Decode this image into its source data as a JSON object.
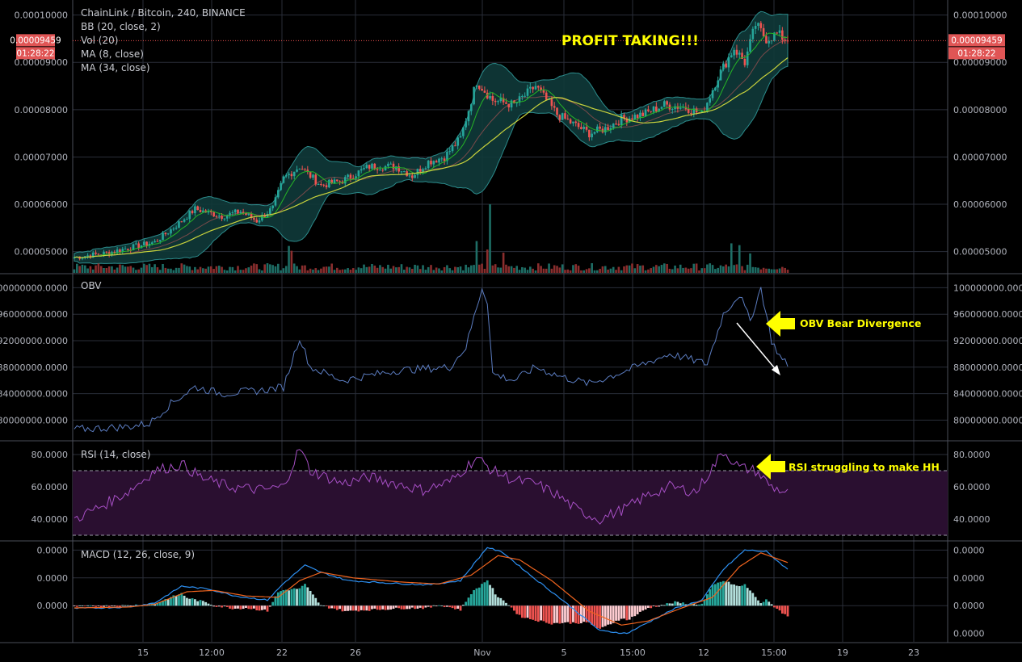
{
  "header": {
    "symbol": "ChainLink / Bitcoin, 240, BINANCE",
    "indicators": [
      "BB (20, close, 2)",
      "Vol (20)",
      "MA (8, close)",
      "MA (34, close)"
    ]
  },
  "price_tag": {
    "value": "0.00009459",
    "countdown": "01:28:22",
    "color": "#e05555"
  },
  "annotations": {
    "profit": "PROFIT TAKING!!!",
    "obv": "OBV Bear Divergence",
    "rsi": "RSI struggling to make HH"
  },
  "panes": {
    "obv": {
      "label": "OBV"
    },
    "rsi": {
      "label": "RSI (14, close)"
    },
    "macd": {
      "label": "MACD (12, 26, close, 9)"
    }
  },
  "colors": {
    "up": "#26a69a",
    "down": "#ef5350",
    "bb_fill": "#0f3a3a",
    "ma8": "#26b526",
    "ma34": "#c8d23c",
    "obv": "#5b7cc0",
    "rsi": "#a64fc4",
    "rsi_band": "#2a0f30",
    "macd": "#2d8ff0",
    "signal": "#f0641e",
    "annot": "#ffff00",
    "grid": "#2a2e39"
  },
  "chart_data": [
    {
      "type": "candlestick",
      "name": "price",
      "y_ticks": [
        "0.00010000",
        "0.00009000",
        "0.00008000",
        "0.00007000",
        "0.00006000",
        "0.00005000"
      ],
      "ylim": [
        4.55e-05,
        0.0001025
      ],
      "x_ticks": [
        "15",
        "12:00",
        "22",
        "26",
        "Nov",
        "5",
        "15:00",
        "12",
        "15:00",
        "19",
        "23"
      ],
      "close_keypoints": [
        [
          0,
          4.88e-05
        ],
        [
          12,
          4.97e-05
        ],
        [
          22,
          5.1e-05
        ],
        [
          30,
          5.2e-05
        ],
        [
          38,
          5.55e-05
        ],
        [
          45,
          5.9e-05
        ],
        [
          55,
          5.75e-05
        ],
        [
          62,
          5.85e-05
        ],
        [
          68,
          5.65e-05
        ],
        [
          74,
          5.92e-05
        ],
        [
          78,
          6.55e-05
        ],
        [
          84,
          6.8e-05
        ],
        [
          92,
          6.4e-05
        ],
        [
          100,
          6.5e-05
        ],
        [
          110,
          6.8e-05
        ],
        [
          120,
          6.8e-05
        ],
        [
          126,
          6.6e-05
        ],
        [
          132,
          6.9e-05
        ],
        [
          138,
          7e-05
        ],
        [
          144,
          7.4e-05
        ],
        [
          150,
          8.6e-05
        ],
        [
          156,
          8.2e-05
        ],
        [
          164,
          8.1e-05
        ],
        [
          172,
          8.5e-05
        ],
        [
          180,
          7.9e-05
        ],
        [
          186,
          7.7e-05
        ],
        [
          192,
          7.5e-05
        ],
        [
          198,
          7.6e-05
        ],
        [
          204,
          7.8e-05
        ],
        [
          212,
          7.9e-05
        ],
        [
          220,
          8.1e-05
        ],
        [
          228,
          8.05e-05
        ],
        [
          234,
          7.9e-05
        ],
        [
          240,
          8.7e-05
        ],
        [
          246,
          9.3e-05
        ],
        [
          250,
          9e-05
        ],
        [
          254,
          9.8e-05
        ],
        [
          258,
          9.5e-05
        ],
        [
          262,
          9.6e-05
        ],
        [
          266,
          9.46e-05
        ]
      ],
      "last": 9.459e-05
    },
    {
      "type": "line",
      "name": "OBV",
      "y_ticks": [
        "100000000.0000",
        "96000000.0000",
        "92000000.0000",
        "88000000.0000",
        "84000000.0000",
        "80000000.0000"
      ],
      "ylim": [
        77000000,
        102000000
      ],
      "keypoints": [
        [
          0,
          78600000
        ],
        [
          20,
          79000000
        ],
        [
          28,
          79500000
        ],
        [
          36,
          82500000
        ],
        [
          45,
          85000000
        ],
        [
          55,
          84000000
        ],
        [
          70,
          84500000
        ],
        [
          78,
          85000000
        ],
        [
          84,
          92500000
        ],
        [
          88,
          88000000
        ],
        [
          100,
          86000000
        ],
        [
          120,
          87500000
        ],
        [
          140,
          88000000
        ],
        [
          146,
          91000000
        ],
        [
          152,
          100000000
        ],
        [
          154,
          98000000
        ],
        [
          156,
          87000000
        ],
        [
          164,
          86000000
        ],
        [
          172,
          88000000
        ],
        [
          182,
          86500000
        ],
        [
          192,
          85500000
        ],
        [
          206,
          87500000
        ],
        [
          222,
          90000000
        ],
        [
          236,
          88500000
        ],
        [
          242,
          96000000
        ],
        [
          248,
          99000000
        ],
        [
          252,
          95000000
        ],
        [
          256,
          100000000
        ],
        [
          260,
          92000000
        ],
        [
          264,
          89000000
        ],
        [
          266,
          88500000
        ]
      ]
    },
    {
      "type": "line",
      "name": "RSI",
      "y_ticks": [
        "80.0000",
        "60.0000",
        "40.0000"
      ],
      "ylim": [
        27,
        88
      ],
      "bands": [
        30,
        70
      ],
      "keypoints": [
        [
          0,
          40
        ],
        [
          10,
          48
        ],
        [
          20,
          57
        ],
        [
          30,
          70
        ],
        [
          40,
          74
        ],
        [
          48,
          65
        ],
        [
          58,
          60
        ],
        [
          70,
          58
        ],
        [
          78,
          60
        ],
        [
          84,
          84
        ],
        [
          88,
          70
        ],
        [
          100,
          62
        ],
        [
          110,
          66
        ],
        [
          120,
          62
        ],
        [
          130,
          58
        ],
        [
          140,
          63
        ],
        [
          150,
          78
        ],
        [
          156,
          70
        ],
        [
          164,
          64
        ],
        [
          172,
          62
        ],
        [
          180,
          55
        ],
        [
          188,
          45
        ],
        [
          196,
          40
        ],
        [
          206,
          47
        ],
        [
          214,
          55
        ],
        [
          222,
          60
        ],
        [
          232,
          57
        ],
        [
          242,
          82
        ],
        [
          248,
          72
        ],
        [
          254,
          70
        ],
        [
          260,
          60
        ],
        [
          266,
          56
        ]
      ]
    },
    {
      "type": "line",
      "name": "MACD",
      "y_ticks": [
        "0.0000",
        "0.0000",
        "0.0000",
        "0.0000"
      ],
      "ylim": [
        -1.3,
        2.3
      ],
      "series_macd": [
        [
          0,
          -0.1
        ],
        [
          20,
          -0.05
        ],
        [
          30,
          0.1
        ],
        [
          40,
          0.7
        ],
        [
          50,
          0.6
        ],
        [
          60,
          0.35
        ],
        [
          72,
          0.2
        ],
        [
          78,
          0.8
        ],
        [
          86,
          1.45
        ],
        [
          92,
          1.2
        ],
        [
          102,
          0.9
        ],
        [
          120,
          0.8
        ],
        [
          132,
          0.75
        ],
        [
          144,
          0.9
        ],
        [
          154,
          2.1
        ],
        [
          160,
          1.9
        ],
        [
          170,
          1.1
        ],
        [
          182,
          0.2
        ],
        [
          196,
          -0.9
        ],
        [
          206,
          -1.0
        ],
        [
          214,
          -0.6
        ],
        [
          224,
          -0.1
        ],
        [
          234,
          0.2
        ],
        [
          242,
          1.3
        ],
        [
          250,
          2.0
        ],
        [
          258,
          1.95
        ],
        [
          266,
          1.3
        ]
      ],
      "series_signal": [
        [
          0,
          -0.08
        ],
        [
          20,
          -0.05
        ],
        [
          30,
          0.05
        ],
        [
          42,
          0.5
        ],
        [
          52,
          0.55
        ],
        [
          64,
          0.35
        ],
        [
          76,
          0.3
        ],
        [
          84,
          0.9
        ],
        [
          92,
          1.2
        ],
        [
          104,
          1.0
        ],
        [
          122,
          0.85
        ],
        [
          136,
          0.78
        ],
        [
          148,
          1.1
        ],
        [
          158,
          1.8
        ],
        [
          166,
          1.65
        ],
        [
          178,
          0.9
        ],
        [
          192,
          -0.2
        ],
        [
          204,
          -0.7
        ],
        [
          214,
          -0.55
        ],
        [
          226,
          -0.1
        ],
        [
          238,
          0.3
        ],
        [
          248,
          1.4
        ],
        [
          256,
          1.9
        ],
        [
          266,
          1.55
        ]
      ]
    }
  ]
}
